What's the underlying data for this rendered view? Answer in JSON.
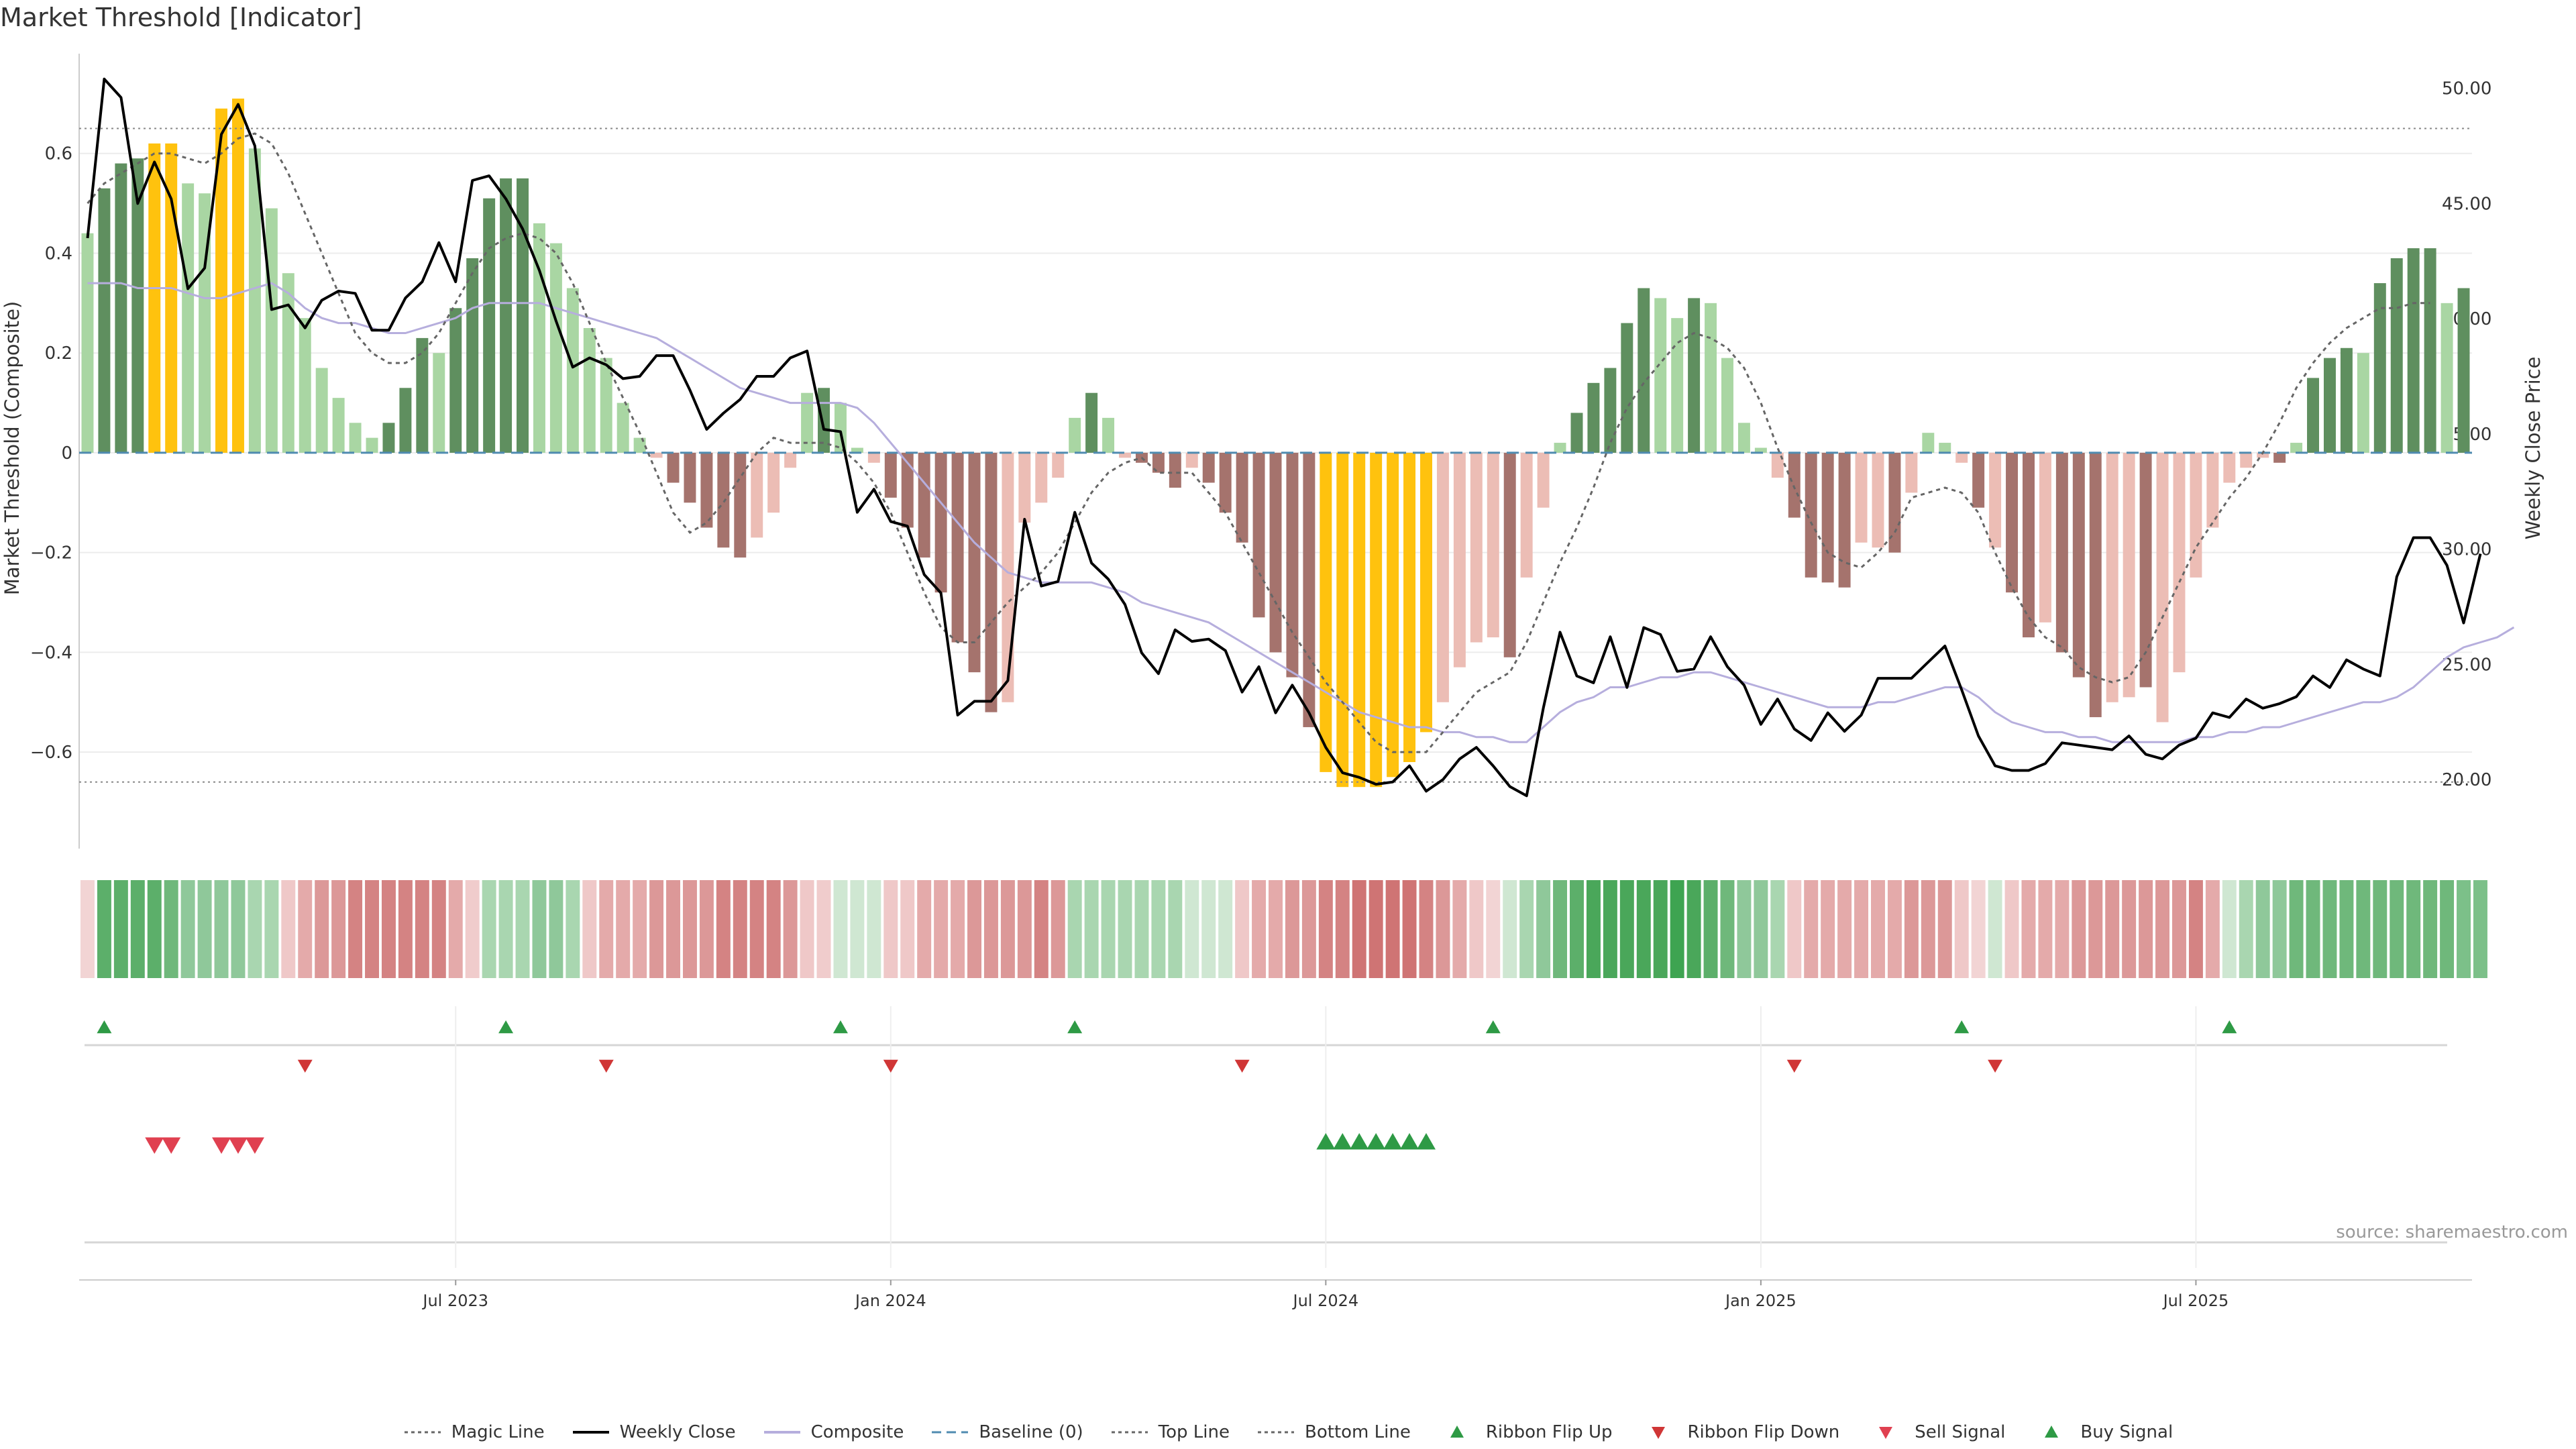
{
  "title": "Market Threshold [Indicator]",
  "source": "source: sharemaestro.com",
  "colors": {
    "strong_up": "#5f8f5f",
    "weak_up": "#a9d6a3",
    "strong_down": "#a5736d",
    "weak_down": "#ecbdb5",
    "extreme": "#ffc20e",
    "weekly_close": "#000000",
    "composite": "#b6aedd",
    "magic_line": "#666666",
    "baseline": "#4f8bb0",
    "flip_up": "#2e9a45",
    "flip_down": "#d03636",
    "sell_signal": "#e04050",
    "buy_signal": "#2e9a45"
  },
  "chart_data": {
    "type": "bar",
    "title": "Market Threshold [Indicator]",
    "ylabel": "Market Threshold (Composite)",
    "y2label": "Weekly Close Price",
    "ylim": [
      -0.78,
      0.8
    ],
    "y2lim": [
      17.3,
      51.5
    ],
    "yticks": [
      -0.6,
      -0.4,
      -0.2,
      0,
      0.2,
      0.4,
      0.6
    ],
    "yticklabels": [
      "−0.6",
      "−0.4",
      "−0.2",
      "0",
      "0.2",
      "0.4",
      "0.6"
    ],
    "y2ticks": [
      20,
      25,
      30,
      35,
      40,
      45,
      50
    ],
    "y2ticklabels": [
      "20.00",
      "25.00",
      "30.00",
      "35.00",
      "40.00",
      "45.00",
      "50.00"
    ],
    "x_ticks": [
      {
        "week": 22,
        "label": "Jul 2023"
      },
      {
        "week": 48,
        "label": "Jan 2024"
      },
      {
        "week": 74,
        "label": "Jul 2024"
      },
      {
        "week": 100,
        "label": "Jan 2025"
      },
      {
        "week": 126,
        "label": "Jul 2025"
      }
    ],
    "top_line": 0.65,
    "bottom_line": -0.66,
    "grid": true,
    "legend_position": "bottom-center",
    "composite_bars": [
      0.44,
      0.53,
      0.58,
      0.59,
      0.62,
      0.62,
      0.54,
      0.52,
      0.69,
      0.71,
      0.61,
      0.49,
      0.36,
      0.27,
      0.17,
      0.11,
      0.06,
      0.03,
      0.06,
      0.13,
      0.23,
      0.2,
      0.29,
      0.39,
      0.51,
      0.55,
      0.55,
      0.46,
      0.42,
      0.33,
      0.25,
      0.19,
      0.1,
      0.03,
      -0.01,
      -0.06,
      -0.1,
      -0.15,
      -0.19,
      -0.21,
      -0.17,
      -0.12,
      -0.03,
      0.12,
      0.13,
      0.1,
      0.01,
      -0.02,
      -0.09,
      -0.15,
      -0.21,
      -0.28,
      -0.38,
      -0.44,
      -0.52,
      -0.5,
      -0.14,
      -0.1,
      -0.05,
      0.07,
      0.12,
      0.07,
      -0.01,
      -0.02,
      -0.04,
      -0.07,
      -0.03,
      -0.06,
      -0.12,
      -0.18,
      -0.33,
      -0.4,
      -0.45,
      -0.55,
      -0.64,
      -0.67,
      -0.67,
      -0.67,
      -0.65,
      -0.62,
      -0.56,
      -0.5,
      -0.43,
      -0.38,
      -0.37,
      -0.41,
      -0.25,
      -0.11,
      0.02,
      0.08,
      0.14,
      0.17,
      0.26,
      0.33,
      0.31,
      0.27,
      0.31,
      0.3,
      0.19,
      0.06,
      0.01,
      -0.05,
      -0.13,
      -0.25,
      -0.26,
      -0.27,
      -0.18,
      -0.19,
      -0.2,
      -0.08,
      0.04,
      0.02,
      -0.02,
      -0.11,
      -0.19,
      -0.28,
      -0.37,
      -0.34,
      -0.4,
      -0.45,
      -0.53,
      -0.5,
      -0.49,
      -0.47,
      -0.54,
      -0.44,
      -0.25,
      -0.15,
      -0.06,
      -0.03,
      -0.01,
      -0.02,
      0.02,
      0.15,
      0.19,
      0.21,
      0.2,
      0.34,
      0.39,
      0.41,
      0.41,
      0.3,
      0.33
    ],
    "bar_colors": [
      "weak_up",
      "strong_up",
      "strong_up",
      "strong_up",
      "extreme",
      "extreme",
      "weak_up",
      "weak_up",
      "extreme",
      "extreme",
      "weak_up",
      "weak_up",
      "weak_up",
      "weak_up",
      "weak_up",
      "weak_up",
      "weak_up",
      "weak_up",
      "strong_up",
      "strong_up",
      "strong_up",
      "weak_up",
      "strong_up",
      "strong_up",
      "strong_up",
      "strong_up",
      "strong_up",
      "weak_up",
      "weak_up",
      "weak_up",
      "weak_up",
      "weak_up",
      "weak_up",
      "weak_up",
      "weak_down",
      "strong_down",
      "strong_down",
      "strong_down",
      "strong_down",
      "strong_down",
      "weak_down",
      "weak_down",
      "weak_down",
      "weak_up",
      "strong_up",
      "weak_up",
      "weak_up",
      "weak_down",
      "strong_down",
      "strong_down",
      "strong_down",
      "strong_down",
      "strong_down",
      "strong_down",
      "strong_down",
      "weak_down",
      "weak_down",
      "weak_down",
      "weak_down",
      "weak_up",
      "strong_up",
      "weak_up",
      "weak_down",
      "strong_down",
      "strong_down",
      "strong_down",
      "weak_down",
      "strong_down",
      "strong_down",
      "strong_down",
      "strong_down",
      "strong_down",
      "strong_down",
      "strong_down",
      "extreme",
      "extreme",
      "extreme",
      "extreme",
      "extreme",
      "extreme",
      "extreme",
      "weak_down",
      "weak_down",
      "weak_down",
      "weak_down",
      "strong_down",
      "weak_down",
      "weak_down",
      "weak_up",
      "strong_up",
      "strong_up",
      "strong_up",
      "strong_up",
      "strong_up",
      "weak_up",
      "weak_up",
      "strong_up",
      "weak_up",
      "weak_up",
      "weak_up",
      "weak_up",
      "weak_down",
      "strong_down",
      "strong_down",
      "strong_down",
      "strong_down",
      "weak_down",
      "weak_down",
      "strong_down",
      "weak_down",
      "weak_up",
      "weak_up",
      "weak_down",
      "strong_down",
      "weak_down",
      "strong_down",
      "strong_down",
      "weak_down",
      "strong_down",
      "strong_down",
      "strong_down",
      "weak_down",
      "weak_down",
      "strong_down",
      "weak_down",
      "weak_down",
      "weak_down",
      "weak_down",
      "weak_down",
      "weak_down",
      "weak_down",
      "strong_down",
      "weak_up",
      "strong_up",
      "strong_up",
      "strong_up",
      "weak_up",
      "strong_up",
      "strong_up",
      "strong_up",
      "strong_up",
      "weak_up",
      "strong_up"
    ],
    "weekly_close": [
      43.5,
      50.4,
      49.6,
      45,
      46.8,
      45.2,
      41.3,
      42.2,
      48,
      49.3,
      47.5,
      40.4,
      40.6,
      39.6,
      40.8,
      41.2,
      41.1,
      39.5,
      39.5,
      40.9,
      41.6,
      43.3,
      41.6,
      46,
      46.2,
      45.2,
      43.9,
      42.1,
      39.9,
      37.9,
      38.3,
      38,
      37.4,
      37.5,
      38.4,
      38.4,
      36.9,
      35.2,
      35.9,
      36.5,
      37.5,
      37.5,
      38.3,
      38.6,
      35.2,
      35.1,
      31.6,
      32.6,
      31.2,
      31,
      28.9,
      28.1,
      22.8,
      23.4,
      23.4,
      24.3,
      31.3,
      28.4,
      28.6,
      31.6,
      29.4,
      28.7,
      27.6,
      25.5,
      24.6,
      26.5,
      26,
      26.1,
      25.6,
      23.8,
      24.9,
      22.9,
      24.1,
      22.9,
      21.4,
      20.3,
      20.1,
      19.8,
      19.9,
      20.6,
      19.5,
      20,
      20.9,
      21.4,
      20.6,
      19.7,
      19.3,
      23.1,
      26.4,
      24.5,
      24.2,
      26.2,
      24,
      26.6,
      26.3,
      24.7,
      24.8,
      26.2,
      24.9,
      24.1,
      22.4,
      23.5,
      22.2,
      21.7,
      22.9,
      22.1,
      22.8,
      24.4,
      24.4,
      24.4,
      25.1,
      25.8,
      23.9,
      21.9,
      20.6,
      20.4,
      20.4,
      20.7,
      21.6,
      21.5,
      21.4,
      21.3,
      21.9,
      21.1,
      20.9,
      21.5,
      21.8,
      22.9,
      22.7,
      23.5,
      23.1,
      23.3,
      23.6,
      24.5,
      24,
      25.2,
      24.8,
      24.5,
      28.8,
      30.5,
      30.5,
      29.3,
      26.8,
      29.8
    ],
    "composite_line": [
      0.34,
      0.34,
      0.34,
      0.33,
      0.33,
      0.33,
      0.32,
      0.31,
      0.31,
      0.32,
      0.33,
      0.34,
      0.32,
      0.29,
      0.27,
      0.26,
      0.26,
      0.25,
      0.24,
      0.24,
      0.25,
      0.26,
      0.27,
      0.29,
      0.3,
      0.3,
      0.3,
      0.3,
      0.29,
      0.28,
      0.27,
      0.26,
      0.25,
      0.24,
      0.23,
      0.21,
      0.19,
      0.17,
      0.15,
      0.13,
      0.12,
      0.11,
      0.1,
      0.1,
      0.1,
      0.1,
      0.09,
      0.06,
      0.02,
      -0.02,
      -0.06,
      -0.1,
      -0.14,
      -0.18,
      -0.21,
      -0.24,
      -0.25,
      -0.26,
      -0.26,
      -0.26,
      -0.26,
      -0.27,
      -0.28,
      -0.3,
      -0.31,
      -0.32,
      -0.33,
      -0.34,
      -0.36,
      -0.38,
      -0.4,
      -0.42,
      -0.44,
      -0.46,
      -0.48,
      -0.5,
      -0.52,
      -0.53,
      -0.54,
      -0.55,
      -0.55,
      -0.56,
      -0.56,
      -0.57,
      -0.57,
      -0.58,
      -0.58,
      -0.55,
      -0.52,
      -0.5,
      -0.49,
      -0.47,
      -0.47,
      -0.46,
      -0.45,
      -0.45,
      -0.44,
      -0.44,
      -0.45,
      -0.46,
      -0.47,
      -0.48,
      -0.49,
      -0.5,
      -0.51,
      -0.51,
      -0.51,
      -0.5,
      -0.5,
      -0.49,
      -0.48,
      -0.47,
      -0.47,
      -0.49,
      -0.52,
      -0.54,
      -0.55,
      -0.56,
      -0.56,
      -0.57,
      -0.57,
      -0.58,
      -0.58,
      -0.58,
      -0.58,
      -0.58,
      -0.57,
      -0.57,
      -0.56,
      -0.56,
      -0.55,
      -0.55,
      -0.54,
      -0.53,
      -0.52,
      -0.51,
      -0.5,
      -0.5,
      -0.49,
      -0.47,
      -0.44,
      -0.41,
      -0.39,
      -0.38,
      -0.37,
      -0.35
    ],
    "magic_line": [
      0.5,
      0.54,
      0.56,
      0.58,
      0.6,
      0.6,
      0.59,
      0.58,
      0.6,
      0.63,
      0.64,
      0.62,
      0.56,
      0.48,
      0.4,
      0.32,
      0.24,
      0.2,
      0.18,
      0.18,
      0.2,
      0.24,
      0.3,
      0.36,
      0.41,
      0.43,
      0.44,
      0.43,
      0.4,
      0.34,
      0.26,
      0.18,
      0.11,
      0.04,
      -0.04,
      -0.12,
      -0.16,
      -0.14,
      -0.1,
      -0.05,
      0,
      0.03,
      0.02,
      0.02,
      0.02,
      0.01,
      -0.02,
      -0.06,
      -0.12,
      -0.2,
      -0.28,
      -0.35,
      -0.38,
      -0.38,
      -0.34,
      -0.3,
      -0.27,
      -0.24,
      -0.2,
      -0.14,
      -0.08,
      -0.04,
      -0.02,
      -0.01,
      -0.04,
      -0.04,
      -0.04,
      -0.08,
      -0.12,
      -0.18,
      -0.24,
      -0.3,
      -0.36,
      -0.41,
      -0.46,
      -0.5,
      -0.54,
      -0.58,
      -0.6,
      -0.6,
      -0.6,
      -0.56,
      -0.52,
      -0.48,
      -0.46,
      -0.44,
      -0.38,
      -0.3,
      -0.22,
      -0.15,
      -0.07,
      0.02,
      0.09,
      0.14,
      0.18,
      0.22,
      0.24,
      0.23,
      0.21,
      0.17,
      0.1,
      0.01,
      -0.07,
      -0.14,
      -0.2,
      -0.22,
      -0.23,
      -0.2,
      -0.16,
      -0.09,
      -0.08,
      -0.07,
      -0.08,
      -0.12,
      -0.2,
      -0.27,
      -0.33,
      -0.37,
      -0.39,
      -0.43,
      -0.45,
      -0.46,
      -0.45,
      -0.4,
      -0.33,
      -0.26,
      -0.19,
      -0.14,
      -0.09,
      -0.05,
      0,
      0.06,
      0.13,
      0.18,
      0.22,
      0.25,
      0.27,
      0.29,
      0.29,
      0.3,
      0.3
    ],
    "ribbon_colors": [
      "#f2d4d4",
      "#5caf6a",
      "#5caf6a",
      "#5caf6a",
      "#5caf6a",
      "#6fb87b",
      "#8fc89a",
      "#8fc89a",
      "#8fc89a",
      "#8fc89a",
      "#a9d6b0",
      "#a9d6b0",
      "#efc8c8",
      "#e4aaaa",
      "#dc9898",
      "#dc9898",
      "#d48383",
      "#d48383",
      "#d48383",
      "#d48383",
      "#d48383",
      "#d48383",
      "#e4aaaa",
      "#f0cccc",
      "#a9d6b0",
      "#a9d6b0",
      "#a9d6b0",
      "#8fc89a",
      "#8fc89a",
      "#a9d6b0",
      "#efc8c8",
      "#e4aaaa",
      "#e4aaaa",
      "#e4aaaa",
      "#dc9898",
      "#dc9898",
      "#dc9898",
      "#dc9898",
      "#d48383",
      "#d48383",
      "#d48383",
      "#d48383",
      "#dc9898",
      "#efc8c8",
      "#f0cccc",
      "#cfe7d2",
      "#cfe7d2",
      "#cfe7d2",
      "#efc8c8",
      "#efc8c8",
      "#e4aaaa",
      "#e4aaaa",
      "#e4aaaa",
      "#dc9898",
      "#dc9898",
      "#dc9898",
      "#dc9898",
      "#d48383",
      "#dc9898",
      "#a9d6b0",
      "#a9d6b0",
      "#a9d6b0",
      "#a9d6b0",
      "#a9d6b0",
      "#a9d6b0",
      "#a9d6b0",
      "#cfe7d2",
      "#cfe7d2",
      "#cfe7d2",
      "#efc8c8",
      "#e4aaaa",
      "#e4aaaa",
      "#dc9898",
      "#dc9898",
      "#d48383",
      "#d48383",
      "#cf7474",
      "#cf7474",
      "#cf7474",
      "#cf7474",
      "#d48383",
      "#dc9898",
      "#e4aaaa",
      "#efc8c8",
      "#f2d4d4",
      "#cfe7d2",
      "#a9d6b0",
      "#8fc89a",
      "#6fb87b",
      "#5caf6a",
      "#4aa75a",
      "#4aa75a",
      "#4aa75a",
      "#4aa75a",
      "#4aa75a",
      "#3ea451",
      "#4aa75a",
      "#5caf6a",
      "#6fb87b",
      "#8fc89a",
      "#8fc89a",
      "#a9d6b0",
      "#efc8c8",
      "#e4aaaa",
      "#e4aaaa",
      "#e4aaaa",
      "#e4aaaa",
      "#e4aaaa",
      "#e4aaaa",
      "#dc9898",
      "#dc9898",
      "#dc9898",
      "#efc8c8",
      "#f2d4d4",
      "#cfe7d2",
      "#efc8c8",
      "#e4aaaa",
      "#e4aaaa",
      "#e4aaaa",
      "#dc9898",
      "#dc9898",
      "#dc9898",
      "#dc9898",
      "#dc9898",
      "#dc9898",
      "#dc9898",
      "#d48383",
      "#e4aaaa",
      "#cfe7d2",
      "#a9d6b0",
      "#8fc89a",
      "#8fc89a",
      "#6fb87b",
      "#6fb87b",
      "#6fb87b",
      "#6fb87b",
      "#6fb87b",
      "#6fb87b",
      "#6fb87b",
      "#6fb87b",
      "#6fb87b",
      "#6fb87b",
      "#7cc089",
      "#7cc089"
    ],
    "ribbon_flip_up_weeks": [
      1,
      25,
      45,
      59,
      84,
      112,
      128
    ],
    "ribbon_flip_down_weeks": [
      13,
      31,
      48,
      69,
      102,
      114
    ],
    "sell_signal_weeks": [
      4,
      5,
      8,
      9,
      10
    ],
    "buy_signal_weeks": [
      74,
      75,
      76,
      77,
      78,
      79,
      80
    ],
    "legend": [
      {
        "label": "Magic Line",
        "symbol": "dotted-line",
        "color": "magic_line"
      },
      {
        "label": "Weekly Close",
        "symbol": "line",
        "color": "weekly_close"
      },
      {
        "label": "Composite",
        "symbol": "line",
        "color": "composite"
      },
      {
        "label": "Baseline (0)",
        "symbol": "dashed-line",
        "color": "baseline"
      },
      {
        "label": "Top Line",
        "symbol": "dotted-line",
        "color": "magic_line"
      },
      {
        "label": "Bottom Line",
        "symbol": "dotted-line",
        "color": "magic_line"
      },
      {
        "label": "Ribbon Flip Up",
        "symbol": "triangle-up",
        "color": "flip_up"
      },
      {
        "label": "Ribbon Flip Down",
        "symbol": "triangle-down",
        "color": "flip_down"
      },
      {
        "label": "Sell Signal",
        "symbol": "triangle-down",
        "color": "sell_signal"
      },
      {
        "label": "Buy Signal",
        "symbol": "triangle-up",
        "color": "buy_signal"
      }
    ]
  }
}
